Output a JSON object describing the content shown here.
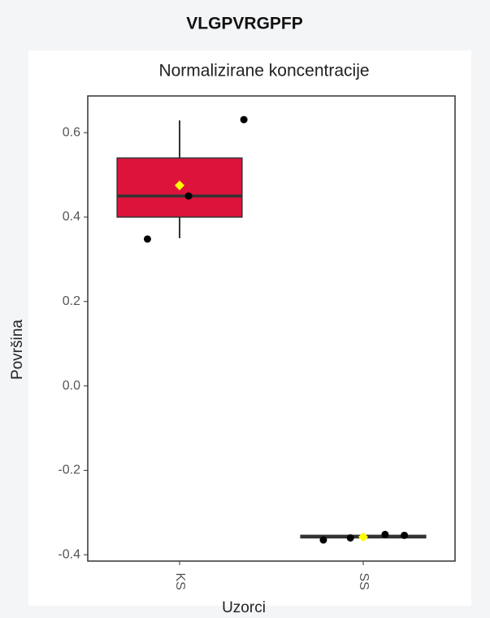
{
  "header": "VLGPVRGPFP",
  "chart_data": {
    "type": "box",
    "title": "Normalizirane koncentracije",
    "x_label": "Uzorci",
    "y_label": "Površina",
    "categories": [
      "KS",
      "SS"
    ],
    "color": "#dc143c",
    "mean_color": "#ffff00",
    "boxes": [
      {
        "min": 0.35,
        "q1": 0.4,
        "median": 0.45,
        "q3": 0.54,
        "max": 0.629,
        "mean": 0.475,
        "points": [
          0.348,
          0.45,
          0.631
        ]
      },
      {
        "min": -0.365,
        "q1": -0.36,
        "median": -0.357,
        "q3": -0.354,
        "max": -0.352,
        "mean": -0.358,
        "points": [
          -0.365,
          -0.36,
          -0.352,
          -0.354
        ]
      }
    ],
    "ylim": [
      -0.415,
      0.687
    ],
    "yticks": [
      0.6,
      0.4,
      0.2,
      {
        "value": 0,
        "label": "0.0"
      },
      -0.2,
      -0.4
    ],
    "grid": false
  }
}
